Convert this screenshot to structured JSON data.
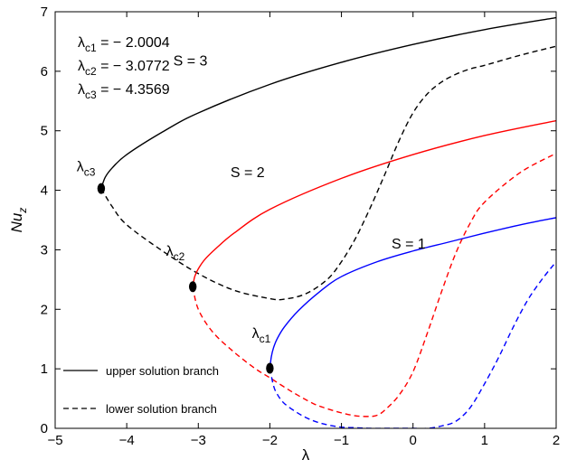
{
  "chart_data": {
    "type": "line",
    "xlabel": "λ",
    "ylabel_base": "Nu",
    "ylabel_sub": "z",
    "xlim": [
      -5,
      2
    ],
    "ylim": [
      0,
      7
    ],
    "xticks": [
      -5,
      -4,
      -3,
      -2,
      -1,
      0,
      1,
      2
    ],
    "yticks": [
      0,
      1,
      2,
      3,
      4,
      5,
      6,
      7
    ],
    "xtick_labels": [
      "−5",
      "−4",
      "−3",
      "−2",
      "−1",
      "0",
      "1",
      "2"
    ],
    "ytick_labels": [
      "0",
      "1",
      "2",
      "3",
      "4",
      "5",
      "6",
      "7"
    ],
    "grid": false,
    "colors": {
      "S3": "#000000",
      "S2": "#ff0000",
      "S1": "#0000ff",
      "point": "#000000"
    },
    "series": [
      {
        "group": "S3",
        "branch": "upper",
        "color": "#000000",
        "x": [
          -4.3569,
          -4.3,
          -4.2,
          -4.0,
          -3.5,
          -3.0,
          -2.0,
          -1.0,
          0.0,
          1.0,
          2.0
        ],
        "y": [
          4.03,
          4.22,
          4.38,
          4.6,
          4.98,
          5.3,
          5.78,
          6.15,
          6.45,
          6.7,
          6.9
        ]
      },
      {
        "group": "S3",
        "branch": "lower",
        "color": "#000000",
        "x": [
          -4.3569,
          -4.2,
          -4.0,
          -3.5,
          -3.0,
          -2.5,
          -2.0,
          -1.8,
          -1.5,
          -1.2,
          -1.0,
          -0.8,
          -0.6,
          -0.4,
          -0.2,
          0.0,
          0.2,
          0.4,
          0.6,
          0.8,
          1.0,
          1.5,
          2.0
        ],
        "y": [
          4.03,
          3.72,
          3.42,
          2.98,
          2.6,
          2.32,
          2.18,
          2.17,
          2.26,
          2.5,
          2.8,
          3.2,
          3.7,
          4.25,
          4.82,
          5.3,
          5.62,
          5.82,
          5.95,
          6.04,
          6.1,
          6.27,
          6.42
        ]
      },
      {
        "group": "S2",
        "branch": "upper",
        "color": "#ff0000",
        "x": [
          -3.0772,
          -3.05,
          -3.0,
          -2.9,
          -2.7,
          -2.5,
          -2.0,
          -1.0,
          0.0,
          1.0,
          2.0
        ],
        "y": [
          2.38,
          2.55,
          2.68,
          2.85,
          3.08,
          3.28,
          3.68,
          4.2,
          4.6,
          4.92,
          5.17
        ]
      },
      {
        "group": "S2",
        "branch": "lower",
        "color": "#ff0000",
        "x": [
          -3.0772,
          -3.0,
          -2.8,
          -2.5,
          -2.2,
          -2.0,
          -1.7,
          -1.4,
          -1.2,
          -1.0,
          -0.8,
          -0.6,
          -0.5,
          -0.4,
          -0.2,
          0.0,
          0.2,
          0.4,
          0.6,
          0.8,
          1.0,
          1.5,
          2.0
        ],
        "y": [
          2.38,
          2.0,
          1.62,
          1.28,
          1.0,
          0.85,
          0.62,
          0.42,
          0.33,
          0.26,
          0.21,
          0.2,
          0.22,
          0.3,
          0.55,
          0.95,
          1.6,
          2.3,
          2.95,
          3.45,
          3.8,
          4.3,
          4.62
        ]
      },
      {
        "group": "S1",
        "branch": "upper",
        "color": "#0000ff",
        "x": [
          -2.0004,
          -1.98,
          -1.95,
          -1.9,
          -1.8,
          -1.6,
          -1.3,
          -1.0,
          -0.5,
          0.0,
          0.5,
          1.0,
          1.5,
          2.0
        ],
        "y": [
          1.01,
          1.2,
          1.35,
          1.5,
          1.7,
          1.98,
          2.3,
          2.55,
          2.8,
          2.98,
          3.13,
          3.28,
          3.42,
          3.54
        ]
      },
      {
        "group": "S1",
        "branch": "lower",
        "color": "#0000ff",
        "x": [
          -2.0004,
          -1.95,
          -1.9,
          -1.8,
          -1.6,
          -1.4,
          -1.2,
          -1.0,
          -0.8,
          -0.6,
          -0.4,
          -0.2,
          0.0,
          0.2,
          0.4,
          0.6,
          0.8,
          1.0,
          1.2,
          1.4,
          1.6,
          1.8,
          2.0
        ],
        "y": [
          1.01,
          0.72,
          0.58,
          0.42,
          0.25,
          0.13,
          0.06,
          0.02,
          0.01,
          0.0,
          0.0,
          0.0,
          0.0,
          0.0,
          0.04,
          0.12,
          0.35,
          0.75,
          1.2,
          1.7,
          2.15,
          2.5,
          2.8
        ]
      }
    ],
    "critical_points": [
      {
        "x": -4.3569,
        "y": 4.03
      },
      {
        "x": -3.0772,
        "y": 2.38
      },
      {
        "x": -2.0004,
        "y": 1.01
      }
    ],
    "annotations": {
      "values": [
        {
          "base": "λ",
          "sub": "c1",
          "value": " = − 2.0004"
        },
        {
          "base": "λ",
          "sub": "c2",
          "value": " = − 3.0772"
        },
        {
          "base": "λ",
          "sub": "c3",
          "value": " = − 4.3569"
        }
      ],
      "s_labels": [
        {
          "text": "S = 3",
          "x": -3.35,
          "y": 6.1
        },
        {
          "text": "S = 2",
          "x": -2.55,
          "y": 4.22
        },
        {
          "text": "S = 1",
          "x": -0.3,
          "y": 3.02
        }
      ],
      "point_labels": [
        {
          "base": "λ",
          "sub": "c3",
          "x": -4.7,
          "y": 4.32
        },
        {
          "base": "λ",
          "sub": "c2",
          "x": -3.45,
          "y": 2.9
        },
        {
          "base": "λ",
          "sub": "c1",
          "x": -2.25,
          "y": 1.52
        }
      ]
    },
    "legend": [
      {
        "label": "upper solution branch",
        "style": "solid"
      },
      {
        "label": "lower solution branch",
        "style": "dashed"
      }
    ],
    "legend_position": "bottom-left"
  }
}
